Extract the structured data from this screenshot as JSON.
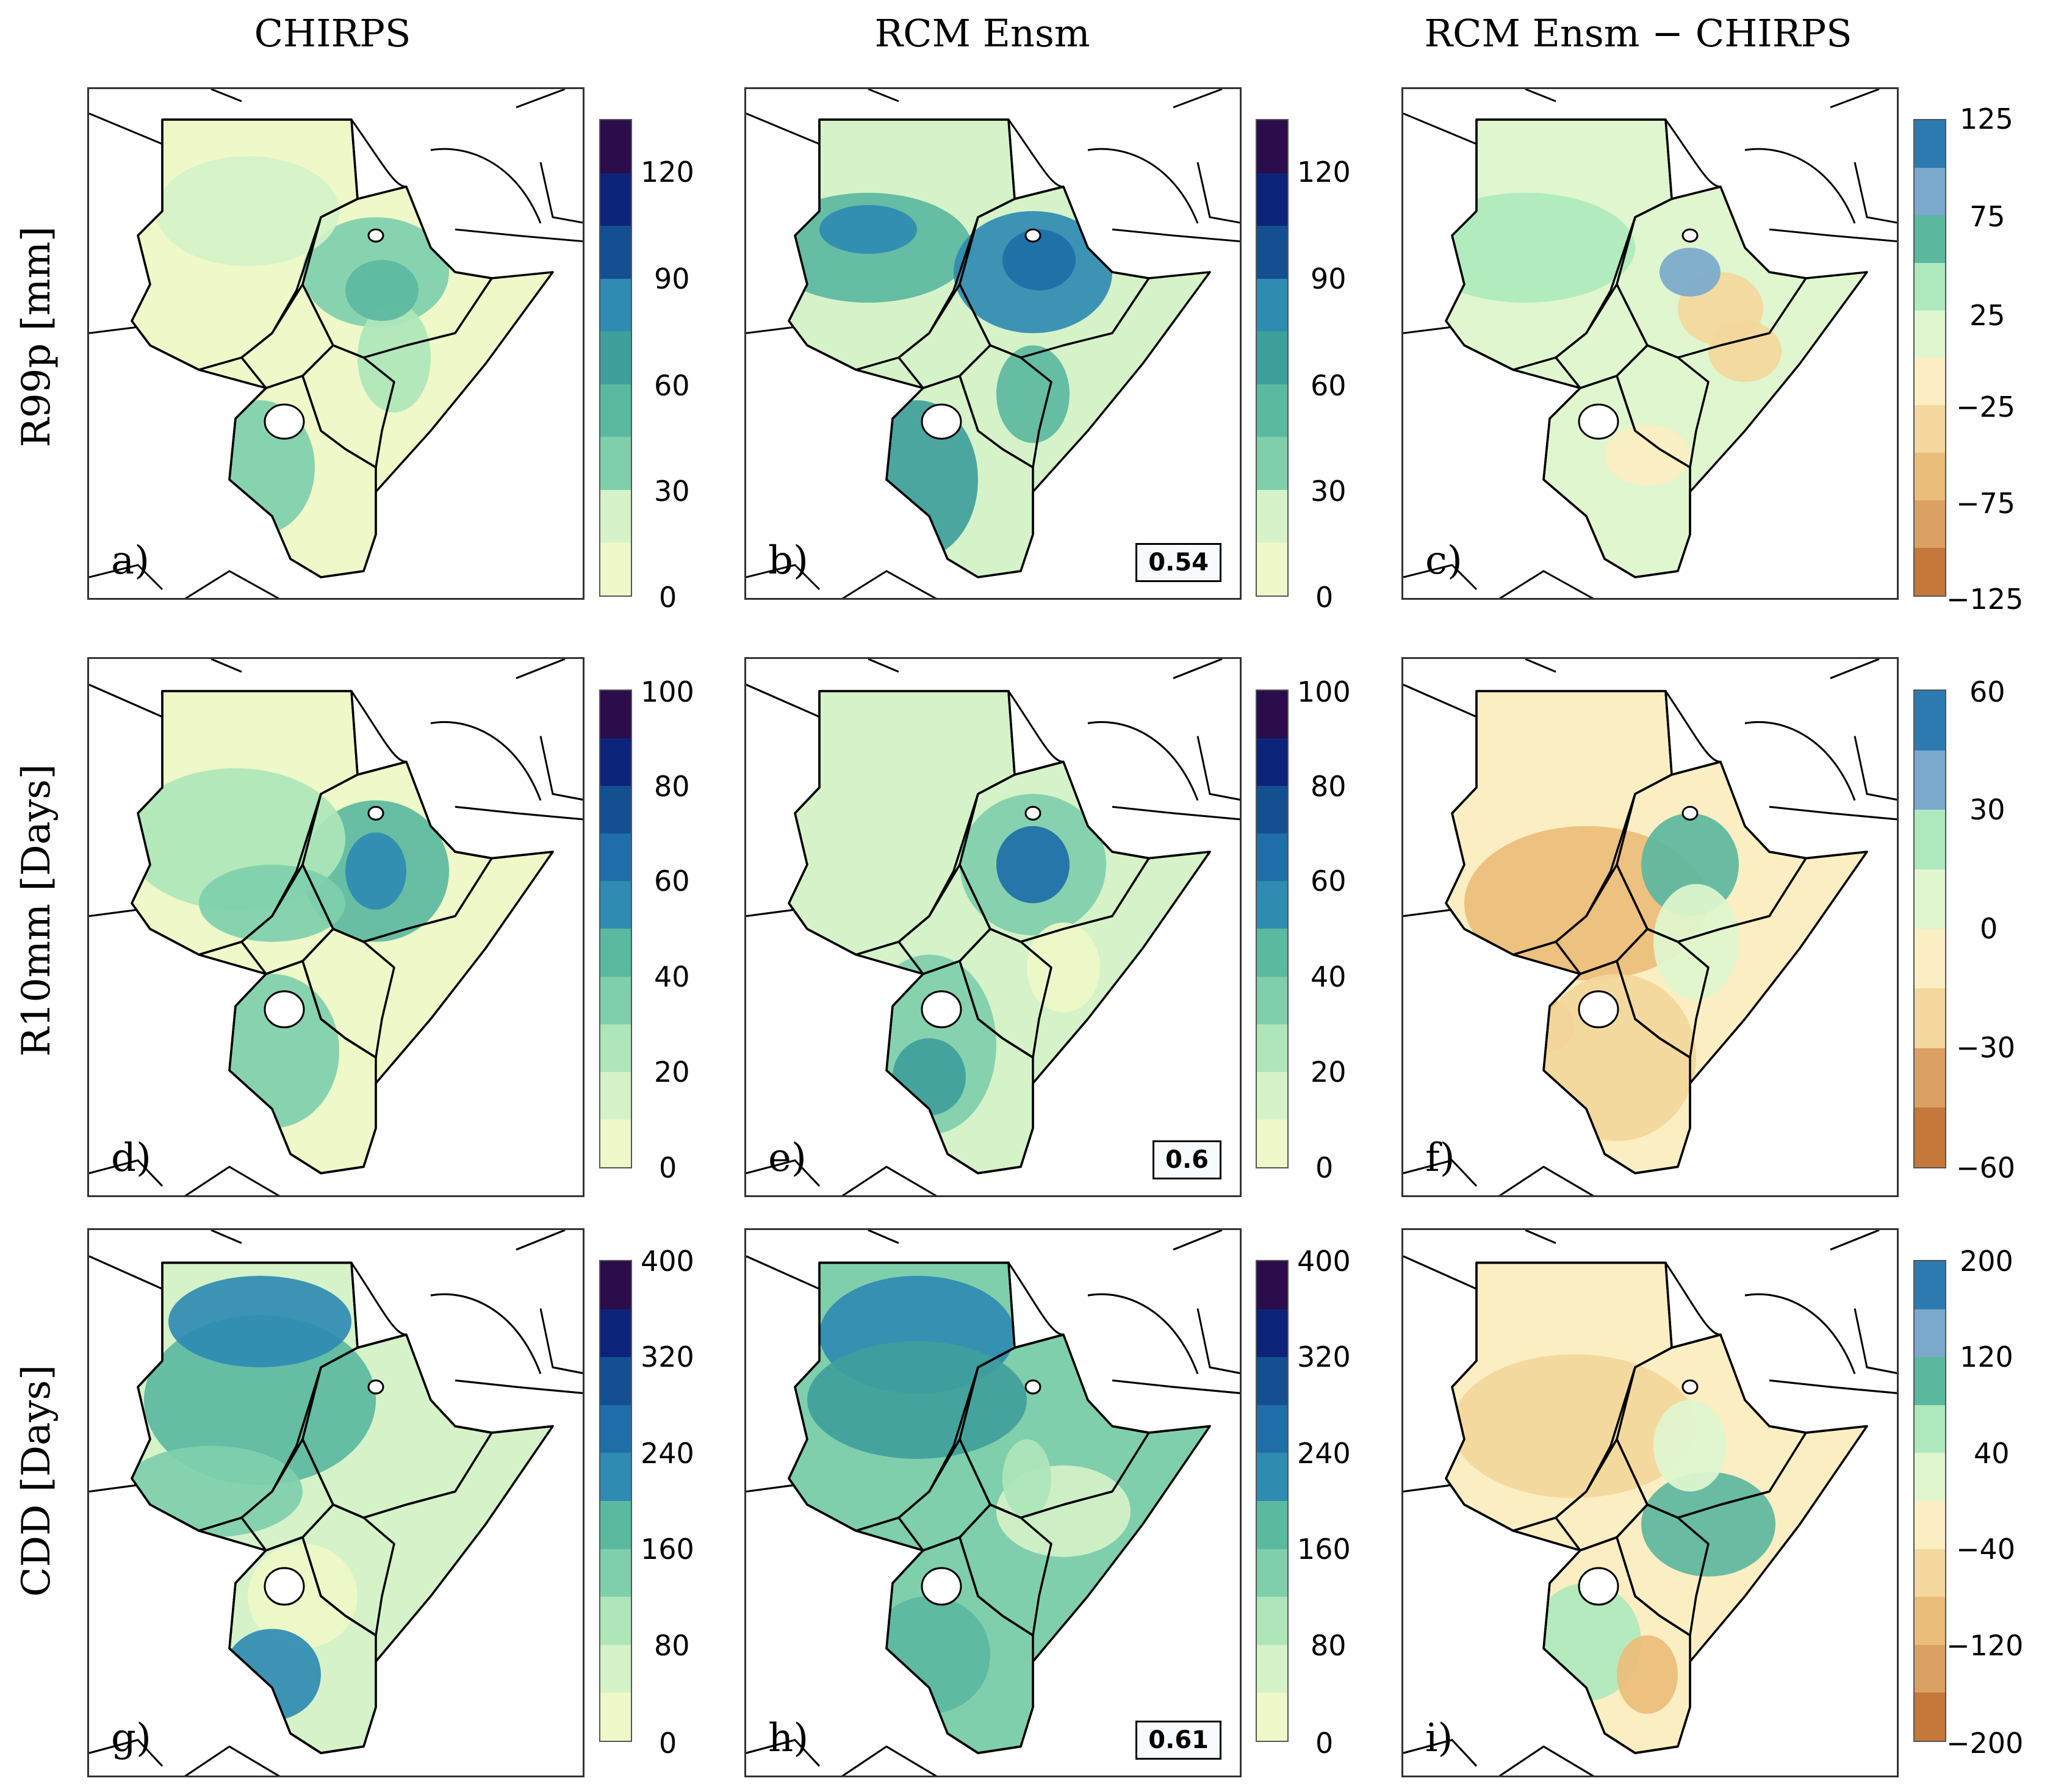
{
  "columns": [
    "CHIRPS",
    "RCM Ensm",
    "RCM Ensm − CHIRPS"
  ],
  "rows": [
    "R99p [mm]",
    "R10mm [Days]",
    "CDD [Days]"
  ],
  "panel_labels": [
    "a)",
    "b)",
    "c)",
    "d)",
    "e)",
    "f)",
    "g)",
    "h)",
    "i)"
  ],
  "correlations": {
    "b": "0.54",
    "e": "0.6",
    "h": "0.61"
  },
  "colorbars": {
    "r99p_abs": {
      "ticks": [
        "120",
        "90",
        "60",
        "30",
        "0"
      ]
    },
    "r99p_diff": {
      "ticks": [
        "125",
        "75",
        "25",
        "−25",
        "−75",
        "−125"
      ]
    },
    "r10_abs": {
      "ticks": [
        "100",
        "80",
        "60",
        "40",
        "20",
        "0"
      ]
    },
    "r10_diff": {
      "ticks": [
        "60",
        "30",
        "0",
        "−30",
        "−60"
      ]
    },
    "cdd_abs": {
      "ticks": [
        "400",
        "320",
        "240",
        "160",
        "80",
        "0"
      ]
    },
    "cdd_diff": {
      "ticks": [
        "200",
        "120",
        "40",
        "−40",
        "−120",
        "−200"
      ]
    }
  },
  "colors": {
    "seq": [
      "#eef8c8",
      "#d5f2c8",
      "#aee6b9",
      "#7fcfac",
      "#5bb9a0",
      "#3fa09b",
      "#2f8bb2",
      "#1f6ea8",
      "#144f90",
      "#0c237a",
      "#2a0d4a"
    ],
    "div": [
      "#c4783a",
      "#dba063",
      "#ebbd7a",
      "#f3d79c",
      "#fbeec2",
      "#dff6cf",
      "#aee9bd",
      "#5cb79f",
      "#7aa9cc",
      "#2d7ab0"
    ]
  }
}
